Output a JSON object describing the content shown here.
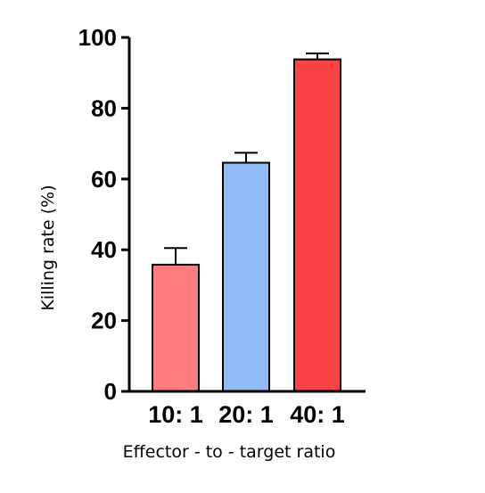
{
  "chart_data": {
    "type": "bar",
    "title": "",
    "xlabel": "Effector - to - target ratio",
    "ylabel": "Killing rate (%)",
    "ylim": [
      0,
      100
    ],
    "yticks": [
      0,
      20,
      40,
      60,
      80,
      100
    ],
    "grid": false,
    "categories": [
      "10: 1",
      "20: 1",
      "40: 1"
    ],
    "values": [
      35.8,
      64.6,
      93.8
    ],
    "errors": [
      4.7,
      2.8,
      1.7
    ],
    "colors": [
      "#ff7b7f",
      "#8fbcf7",
      "#f94244"
    ]
  }
}
